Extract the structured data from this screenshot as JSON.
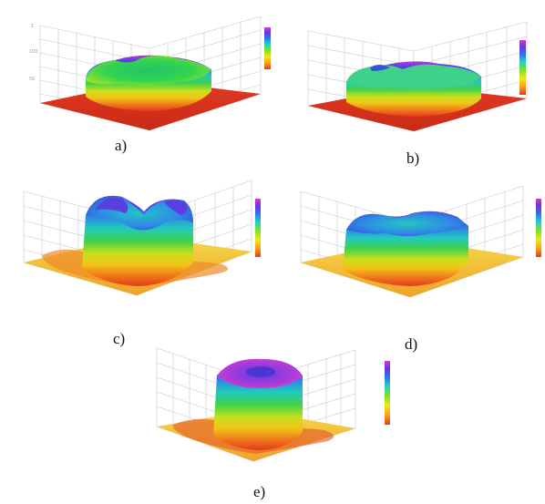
{
  "figure": {
    "panels": [
      {
        "id": "a",
        "label": "a)"
      },
      {
        "id": "b",
        "label": "b)"
      },
      {
        "id": "c",
        "label": "c)"
      },
      {
        "id": "d",
        "label": "d)"
      },
      {
        "id": "e",
        "label": "e)"
      }
    ]
  }
}
